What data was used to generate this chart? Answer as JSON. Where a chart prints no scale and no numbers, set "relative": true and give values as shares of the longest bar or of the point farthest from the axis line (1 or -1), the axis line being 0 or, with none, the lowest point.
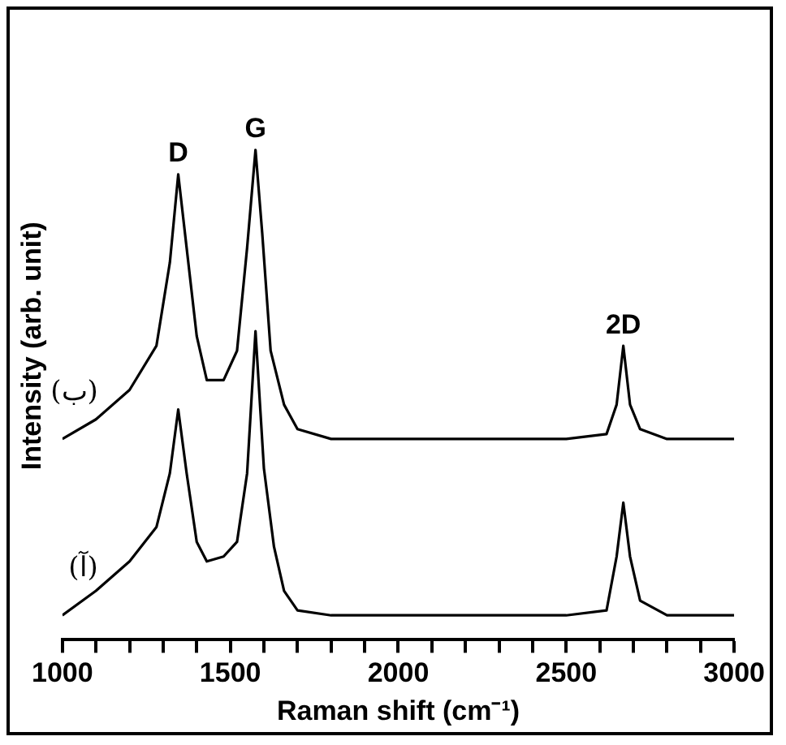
{
  "chart_data": {
    "type": "line",
    "relative": true,
    "xlabel": "Raman shift (cm⁻¹)",
    "ylabel": "Intensity (arb. unit)",
    "xlim": [
      1000,
      3000
    ],
    "xticks": [
      1000,
      {
        "value": 1100,
        "label": null
      },
      {
        "value": 1200,
        "label": null
      },
      {
        "value": 1300,
        "label": null
      },
      {
        "value": 1400,
        "label": null
      },
      1500,
      {
        "value": 1600,
        "label": null
      },
      {
        "value": 1700,
        "label": null
      },
      {
        "value": 1800,
        "label": null
      },
      {
        "value": 1900,
        "label": null
      },
      2000,
      {
        "value": 2100,
        "label": null
      },
      {
        "value": 2200,
        "label": null
      },
      {
        "value": 2300,
        "label": null
      },
      {
        "value": 2400,
        "label": null
      },
      2500,
      {
        "value": 2600,
        "label": null
      },
      {
        "value": 2700,
        "label": null
      },
      {
        "value": 2800,
        "label": null
      },
      {
        "value": 2900,
        "label": null
      },
      3000
    ],
    "grid": false,
    "legend": false,
    "marker": "none",
    "line_style": "solid",
    "series": [
      {
        "name": "(ب)",
        "color": "#000000",
        "x": [
          1000,
          1100,
          1200,
          1280,
          1320,
          1345,
          1370,
          1400,
          1430,
          1480,
          1520,
          1550,
          1575,
          1595,
          1620,
          1660,
          1700,
          1800,
          2000,
          2200,
          2500,
          2620,
          2650,
          2670,
          2690,
          2720,
          2800,
          3000
        ],
        "values": [
          0.41,
          0.45,
          0.51,
          0.6,
          0.77,
          0.95,
          0.8,
          0.62,
          0.53,
          0.53,
          0.59,
          0.8,
          1.0,
          0.83,
          0.59,
          0.48,
          0.43,
          0.41,
          0.41,
          0.41,
          0.41,
          0.42,
          0.48,
          0.6,
          0.48,
          0.43,
          0.41,
          0.41
        ]
      },
      {
        "name": "(آ)",
        "color": "#000000",
        "x": [
          1000,
          1100,
          1200,
          1280,
          1320,
          1345,
          1370,
          1400,
          1430,
          1480,
          1520,
          1550,
          1575,
          1600,
          1630,
          1660,
          1700,
          1800,
          2000,
          2500,
          2620,
          2650,
          2670,
          2690,
          2720,
          2800,
          3000
        ],
        "values": [
          0.05,
          0.1,
          0.16,
          0.23,
          0.34,
          0.47,
          0.34,
          0.2,
          0.16,
          0.17,
          0.2,
          0.34,
          0.63,
          0.35,
          0.19,
          0.1,
          0.06,
          0.05,
          0.05,
          0.05,
          0.06,
          0.17,
          0.28,
          0.17,
          0.08,
          0.05,
          0.05
        ]
      }
    ],
    "annotations": [
      {
        "text": "D",
        "x": 1345,
        "y": 0.95
      },
      {
        "text": "G",
        "x": 1575,
        "y": 1.0
      },
      {
        "text": "2D",
        "x": 2670,
        "y": 0.6
      }
    ]
  }
}
